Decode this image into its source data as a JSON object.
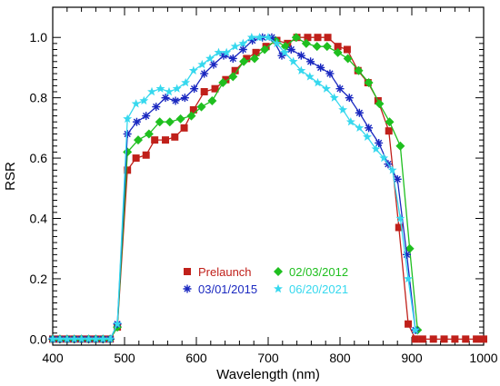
{
  "chart_data": {
    "type": "line",
    "xlabel": "Wavelength (nm)",
    "ylabel": "RSR",
    "xlim": [
      400,
      1000
    ],
    "ylim": [
      -0.02,
      1.1
    ],
    "xticks": [
      400,
      500,
      600,
      700,
      800,
      900,
      1000
    ],
    "yticks": [
      0.0,
      0.2,
      0.4,
      0.6,
      0.8,
      1.0
    ],
    "ytick_labels": [
      "0.0",
      "0.2",
      "0.4",
      "0.6",
      "0.8",
      "1.0"
    ],
    "grid": false,
    "legend_position": "bottom-center",
    "series": [
      {
        "name": "Prelaunch",
        "color": "#c0201a",
        "marker": "square",
        "x": [
          400,
          410,
          420,
          430,
          440,
          450,
          460,
          470,
          480,
          490,
          504,
          516,
          530,
          542,
          557,
          570,
          583,
          596,
          611,
          626,
          641,
          654,
          670,
          683,
          697,
          712,
          727,
          740,
          755,
          769,
          783,
          797,
          810,
          825,
          839,
          853,
          868,
          882,
          895,
          905,
          915,
          930,
          945,
          960,
          975,
          990,
          1000
        ],
        "y": [
          0,
          0,
          0,
          0,
          0,
          0,
          0,
          0,
          0,
          0.04,
          0.56,
          0.6,
          0.61,
          0.66,
          0.66,
          0.67,
          0.7,
          0.76,
          0.82,
          0.83,
          0.86,
          0.89,
          0.93,
          0.95,
          0.97,
          0.99,
          0.98,
          1.0,
          1.0,
          1.0,
          1.0,
          0.97,
          0.96,
          0.89,
          0.85,
          0.79,
          0.69,
          0.37,
          0.05,
          0,
          0,
          0,
          0,
          0,
          0,
          0,
          0
        ]
      },
      {
        "name": "02/03/2012",
        "color": "#1fbf1f",
        "marker": "diamond",
        "x": [
          400,
          410,
          420,
          430,
          440,
          450,
          460,
          470,
          480,
          490,
          504,
          519,
          534,
          549,
          563,
          578,
          593,
          607,
          622,
          637,
          651,
          666,
          681,
          695,
          710,
          724,
          739,
          753,
          768,
          782,
          797,
          811,
          826,
          840,
          855,
          869,
          884,
          897,
          908
        ],
        "y": [
          0,
          0,
          0,
          0,
          0,
          0,
          0,
          0,
          0,
          0.04,
          0.62,
          0.66,
          0.68,
          0.72,
          0.72,
          0.73,
          0.74,
          0.77,
          0.79,
          0.85,
          0.87,
          0.92,
          0.93,
          0.96,
          0.99,
          0.97,
          1.0,
          0.98,
          0.97,
          0.97,
          0.95,
          0.93,
          0.89,
          0.85,
          0.78,
          0.72,
          0.64,
          0.3,
          0.03
        ]
      },
      {
        "name": "03/01/2015",
        "color": "#1a28c0",
        "marker": "asterisk",
        "x": [
          400,
          410,
          420,
          430,
          440,
          450,
          460,
          470,
          480,
          490,
          504,
          517,
          530,
          544,
          557,
          571,
          584,
          597,
          611,
          624,
          638,
          651,
          665,
          678,
          692,
          705,
          719,
          732,
          746,
          759,
          773,
          786,
          800,
          813,
          827,
          840,
          854,
          867,
          880,
          893,
          905
        ],
        "y": [
          0,
          0,
          0,
          0,
          0,
          0,
          0,
          0,
          0,
          0.05,
          0.68,
          0.72,
          0.74,
          0.77,
          0.8,
          0.79,
          0.8,
          0.83,
          0.88,
          0.91,
          0.94,
          0.93,
          0.96,
          0.99,
          1.0,
          1.0,
          0.94,
          0.96,
          0.94,
          0.92,
          0.9,
          0.88,
          0.83,
          0.8,
          0.75,
          0.7,
          0.65,
          0.58,
          0.53,
          0.28,
          0.03
        ]
      },
      {
        "name": "06/20/2021",
        "color": "#36d8ee",
        "marker": "star",
        "x": [
          400,
          410,
          420,
          430,
          440,
          450,
          460,
          470,
          480,
          490,
          504,
          516,
          527,
          538,
          550,
          562,
          573,
          585,
          596,
          608,
          619,
          631,
          642,
          654,
          665,
          677,
          688,
          700,
          712,
          723,
          735,
          746,
          758,
          769,
          781,
          792,
          804,
          815,
          827,
          838,
          850,
          861,
          873,
          884,
          895,
          905
        ],
        "y": [
          0,
          0,
          0,
          0,
          0,
          0,
          0,
          0,
          0,
          0.05,
          0.73,
          0.78,
          0.79,
          0.82,
          0.83,
          0.82,
          0.83,
          0.85,
          0.89,
          0.91,
          0.93,
          0.95,
          0.95,
          0.97,
          0.98,
          1.0,
          1.0,
          1.0,
          0.98,
          0.95,
          0.92,
          0.89,
          0.87,
          0.85,
          0.83,
          0.8,
          0.76,
          0.72,
          0.7,
          0.67,
          0.63,
          0.6,
          0.56,
          0.4,
          0.2,
          0.03
        ]
      }
    ]
  }
}
